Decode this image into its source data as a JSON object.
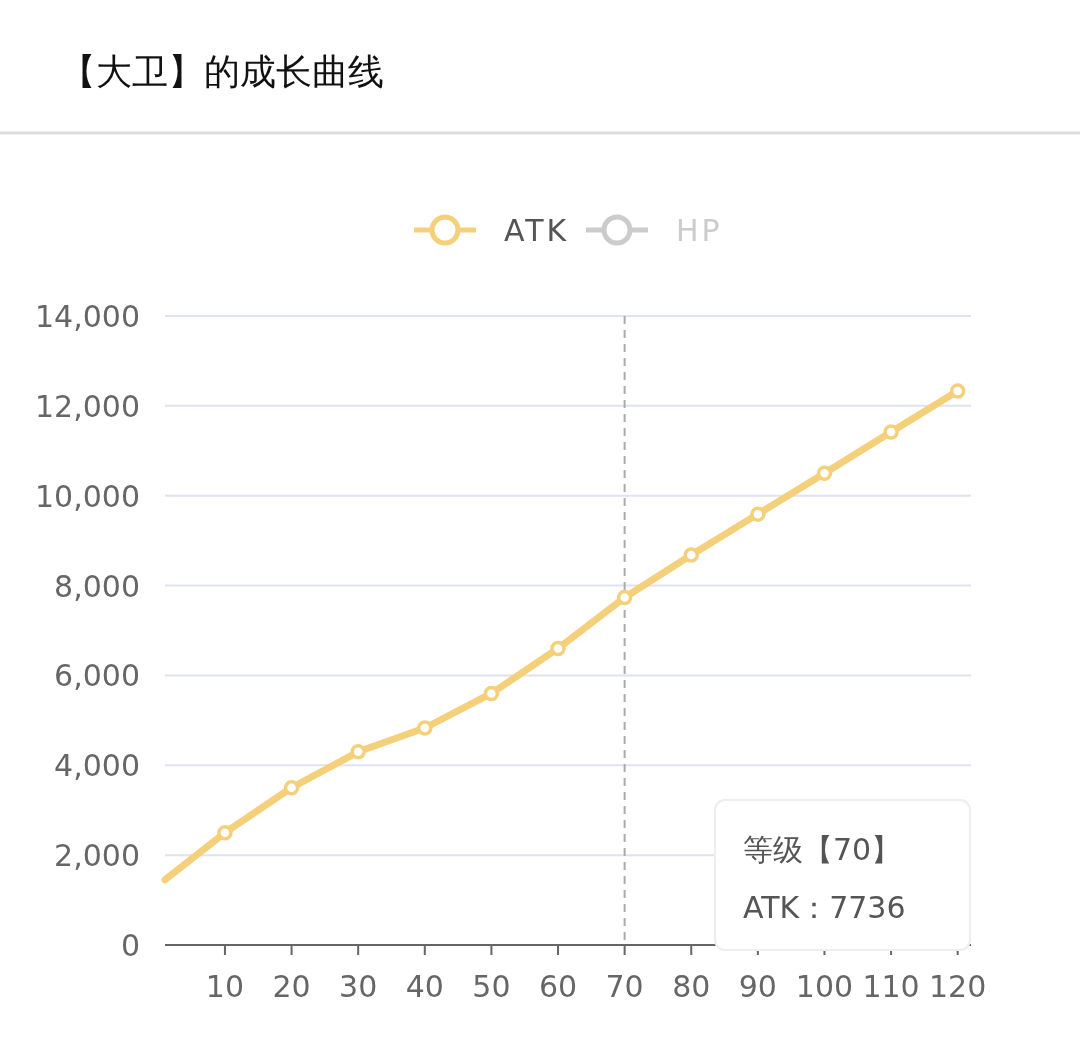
{
  "chart_data": {
    "type": "line",
    "title": "【大卫】的成长曲线",
    "x": [
      1,
      10,
      20,
      30,
      40,
      50,
      60,
      70,
      80,
      90,
      100,
      110,
      120
    ],
    "series": [
      {
        "name": "ATK",
        "color": "#f5d07a",
        "values": [
          1450,
          2500,
          3500,
          4300,
          4830,
          5600,
          6600,
          7736,
          8680,
          9590,
          10500,
          11420,
          12330
        ]
      },
      {
        "name": "HP",
        "color": "#cccccc",
        "values": [
          null,
          null,
          null,
          null,
          null,
          null,
          null,
          null,
          null,
          null,
          null,
          null,
          null
        ]
      }
    ],
    "xlim": [
      1,
      122
    ],
    "xticks": [
      10,
      20,
      30,
      40,
      50,
      60,
      70,
      80,
      90,
      100,
      110,
      120
    ],
    "ylim": [
      0,
      14000
    ],
    "yticks": [
      {
        "value": 0,
        "label": "0"
      },
      {
        "value": 2000,
        "label": "2,000"
      },
      {
        "value": 4000,
        "label": "4,000"
      },
      {
        "value": 6000,
        "label": "6,000"
      },
      {
        "value": 8000,
        "label": "8,000"
      },
      {
        "value": 10000,
        "label": "10,000"
      },
      {
        "value": 12000,
        "label": "12,000"
      },
      {
        "value": 14000,
        "label": "14,000"
      }
    ],
    "grid": "y",
    "legend": "top",
    "marker": "circle",
    "ref_lines": [
      {
        "axis": "x",
        "value": 70,
        "label": null,
        "color": "#aaaaaa",
        "line_style": "dashed"
      }
    ],
    "annotations": [
      "等级【70】",
      "ATK：7736"
    ]
  }
}
